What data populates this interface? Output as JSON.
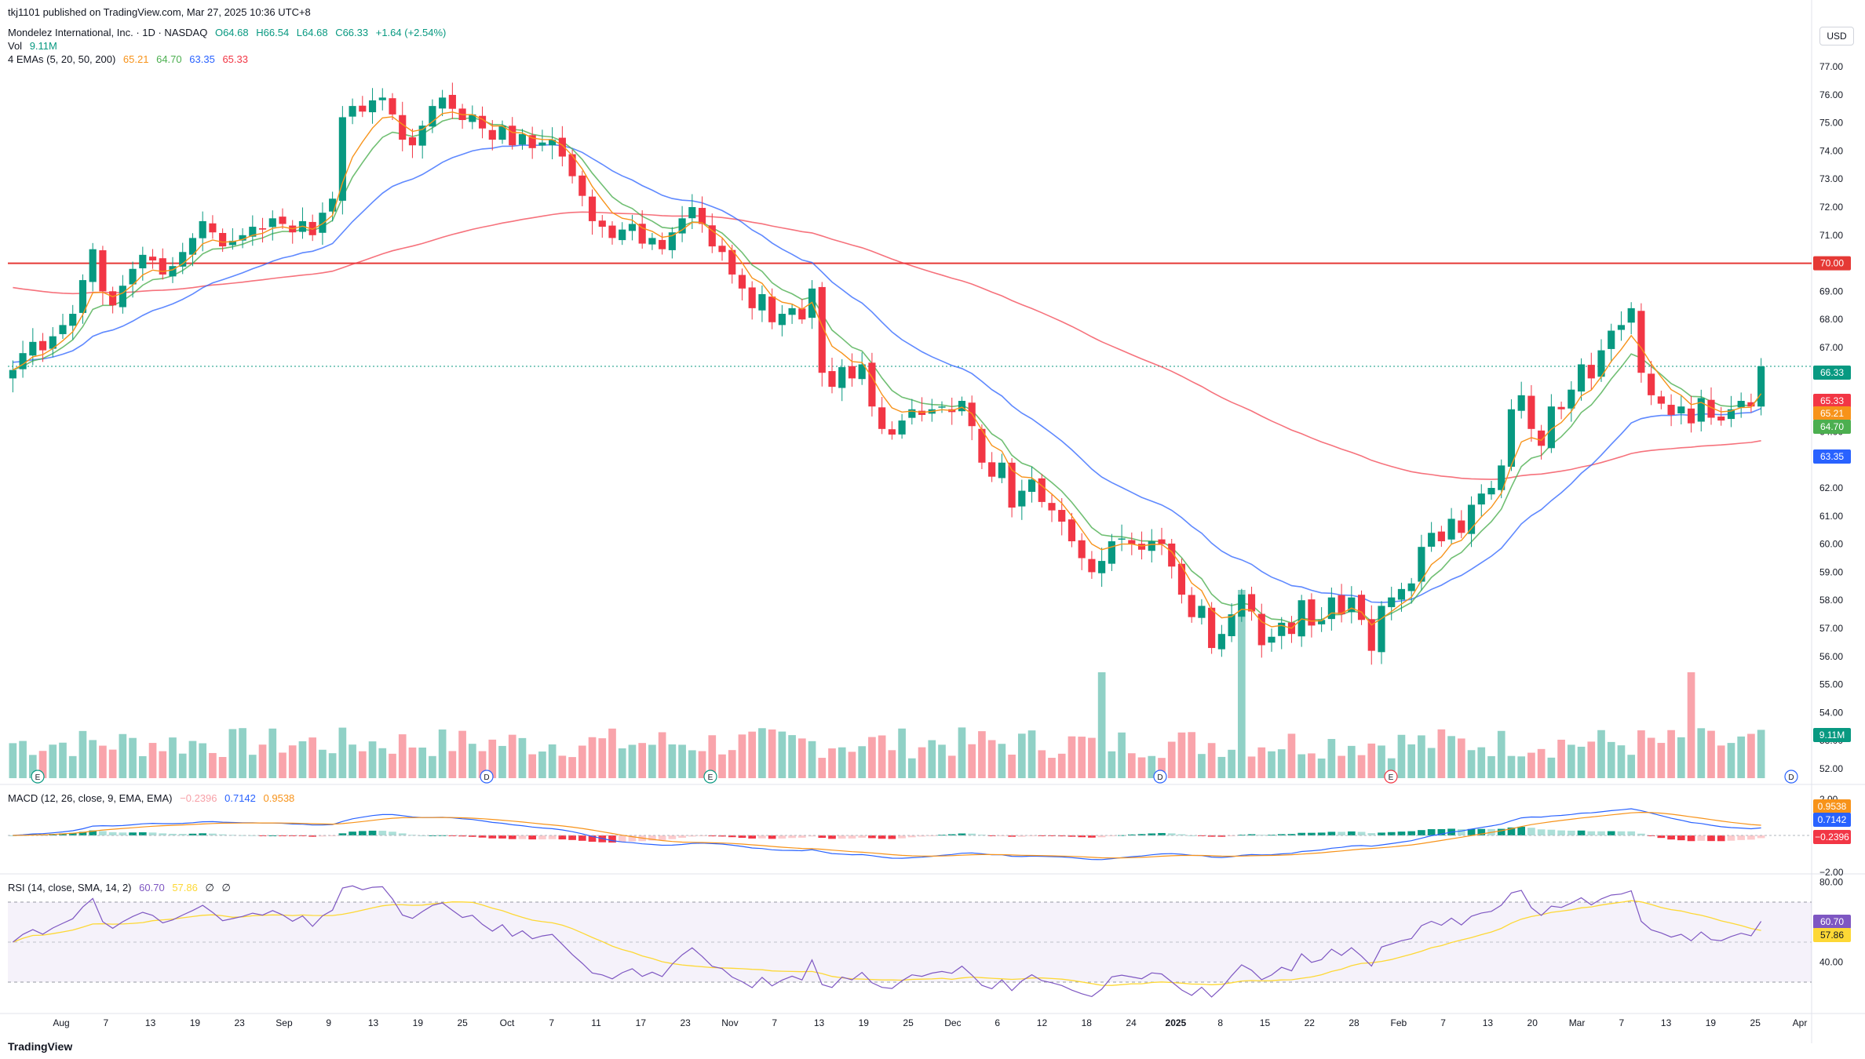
{
  "header": {
    "published": "tkj1101 published on TradingView.com, Mar 27, 2025 10:36 UTC+8",
    "symbol": "Mondelez International, Inc. · 1D · NASDAQ",
    "ohlc": {
      "o": "O64.68",
      "h": "H66.54",
      "l": "L64.68",
      "c": "C66.33",
      "chg": "+1.64 (+2.54%)"
    },
    "vol_label": "Vol",
    "vol_value": "9.11M",
    "ema_label": "4 EMAs (5, 20, 50, 200)",
    "ema_values": [
      "65.21",
      "64.70",
      "63.35",
      "65.33"
    ],
    "macd_label": "MACD (12, 26, close, 9, EMA, EMA)",
    "macd_values": [
      "−0.2396",
      "0.7142",
      "0.9538"
    ],
    "rsi_label": "RSI (14, close, SMA, 14, 2)",
    "rsi_values": [
      "60.70",
      "57.86",
      "∅",
      "∅"
    ]
  },
  "currency": "USD",
  "footer_logo": "TradingView",
  "colors": {
    "up": "#089981",
    "down": "#f23645",
    "ema5": "#f7931a",
    "ema20": "#4caf50",
    "ema50": "#2962ff",
    "ema200": "#f23645",
    "hline": "#e53935",
    "rsi": "#7e57c2",
    "rsi_ma": "#fdd835"
  },
  "chart_data": {
    "type": "candlestick",
    "y_axis": {
      "min": 52,
      "max": 77,
      "ticks": [
        "77.00",
        "76.00",
        "75.00",
        "74.00",
        "73.00",
        "72.00",
        "71.00",
        "70.00",
        "69.00",
        "68.00",
        "67.00",
        "66.00",
        "65.00",
        "64.00",
        "63.00",
        "62.00",
        "61.00",
        "60.00",
        "59.00",
        "58.00",
        "57.00",
        "56.00",
        "55.00",
        "54.00",
        "53.00",
        "52.00"
      ]
    },
    "x_axis": {
      "ticks": [
        "Aug",
        "7",
        "13",
        "19",
        "23",
        "Sep",
        "9",
        "13",
        "19",
        "25",
        "Oct",
        "7",
        "11",
        "17",
        "23",
        "Nov",
        "7",
        "13",
        "19",
        "25",
        "Dec",
        "6",
        "12",
        "18",
        "24",
        "2025",
        "8",
        "15",
        "22",
        "28",
        "Feb",
        "7",
        "13",
        "20",
        "Mar",
        "7",
        "13",
        "19",
        "25",
        "Apr"
      ]
    },
    "horizontal_line": {
      "price": 70.0,
      "label": "70.00"
    },
    "last_price": 66.33,
    "price_labels": [
      {
        "text": "66.33",
        "value": 66.33,
        "color": "#089981"
      },
      {
        "text": "65.33",
        "value": 65.33,
        "color": "#f23645"
      },
      {
        "text": "65.21",
        "value": 65.21,
        "color": "#f7931a"
      },
      {
        "text": "64.70",
        "value": 64.7,
        "color": "#4caf50"
      },
      {
        "text": "63.35",
        "value": 63.35,
        "color": "#2962ff"
      }
    ],
    "volume_label": "9.11M",
    "closes": [
      66.2,
      66.8,
      67.2,
      66.9,
      67.4,
      67.8,
      68.2,
      69.4,
      70.5,
      69.0,
      68.5,
      69.2,
      69.8,
      70.3,
      70.1,
      69.6,
      69.9,
      70.4,
      70.9,
      71.5,
      71.1,
      70.6,
      70.8,
      71.0,
      71.3,
      71.2,
      71.6,
      71.4,
      71.1,
      71.5,
      71.0,
      71.8,
      72.3,
      75.2,
      75.6,
      75.4,
      75.8,
      75.9,
      75.3,
      74.4,
      74.2,
      74.9,
      75.6,
      75.9,
      75.5,
      75.1,
      75.3,
      74.8,
      74.4,
      74.9,
      74.2,
      74.6,
      74.1,
      74.3,
      74.4,
      73.8,
      73.1,
      72.4,
      71.5,
      71.3,
      70.9,
      71.2,
      71.4,
      70.7,
      70.9,
      70.5,
      71.1,
      71.6,
      72.0,
      71.4,
      70.6,
      70.4,
      69.6,
      69.1,
      68.4,
      68.9,
      67.9,
      68.2,
      68.4,
      68.0,
      69.1,
      66.1,
      65.6,
      66.3,
      65.9,
      66.4,
      64.9,
      64.1,
      63.9,
      64.4,
      64.8,
      64.6,
      64.8,
      64.9,
      64.7,
      65.1,
      64.2,
      62.9,
      62.4,
      62.9,
      61.3,
      61.9,
      62.3,
      61.5,
      61.2,
      60.8,
      60.1,
      59.5,
      59.0,
      59.4,
      60.1,
      60.2,
      60.0,
      59.8,
      60.1,
      60.0,
      59.2,
      58.2,
      57.4,
      57.8,
      56.3,
      56.8,
      57.5,
      58.2,
      57.6,
      56.4,
      56.7,
      57.2,
      56.8,
      58.0,
      57.1,
      57.3,
      58.1,
      57.5,
      58.1,
      57.3,
      56.2,
      57.8,
      58.1,
      58.4,
      58.6,
      59.9,
      60.4,
      60.1,
      60.9,
      60.4,
      61.4,
      61.8,
      62.0,
      62.8,
      64.8,
      65.3,
      64.1,
      63.5,
      64.9,
      64.8,
      65.5,
      66.4,
      65.9,
      66.9,
      67.6,
      67.8,
      68.4,
      66.1,
      65.3,
      65.0,
      64.6,
      64.9,
      64.3,
      65.2,
      64.5,
      64.4,
      64.8,
      65.1,
      64.9,
      66.33
    ]
  },
  "macd": {
    "ticks": [
      "2.00",
      "0.00",
      "−2.00"
    ],
    "labels": [
      {
        "text": "0.9538",
        "color": "#f7931a"
      },
      {
        "text": "0.7142",
        "color": "#2962ff"
      },
      {
        "text": "−0.2396",
        "color": "#f23645"
      }
    ]
  },
  "rsi": {
    "ticks": [
      "80.00",
      "60.00",
      "40.00"
    ],
    "labels": [
      {
        "text": "60.70",
        "color": "#7e57c2"
      },
      {
        "text": "57.86",
        "color": "#fdd835"
      }
    ]
  }
}
